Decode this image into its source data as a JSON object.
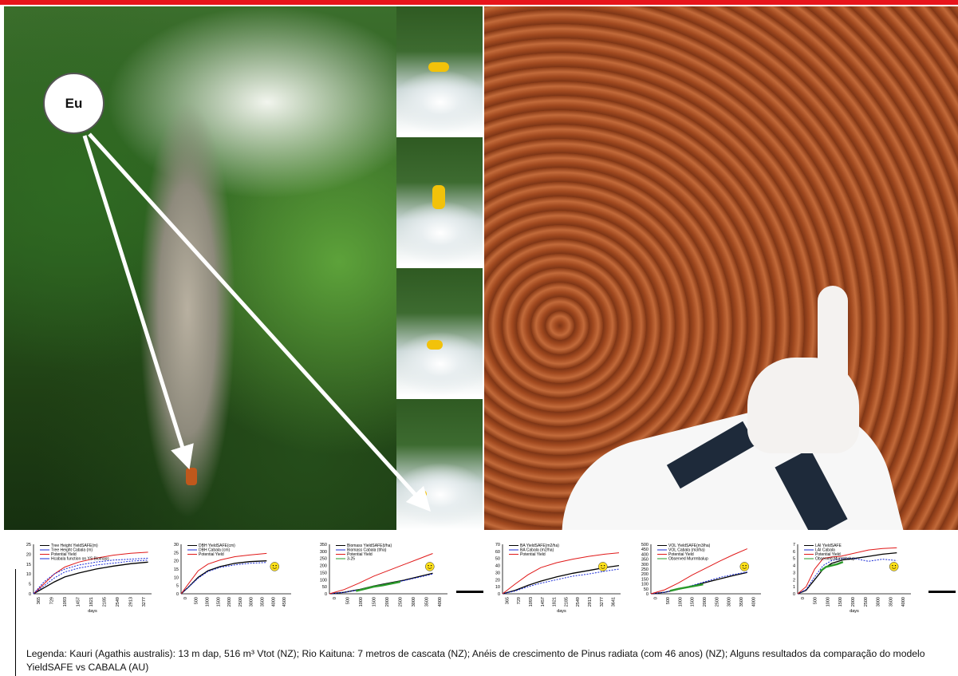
{
  "bubble": {
    "label": "Eu"
  },
  "charts": [
    {
      "name": "tree-height",
      "type": "line",
      "legend": [
        "Tree Height YieldSAFE(m)",
        "Tree Height Cabala (m)",
        "Potential Yield",
        "Hcabala function on YS Biomass"
      ],
      "colors": [
        "#000000",
        "#1a2bd6",
        "#e01818",
        "#1a2bd6"
      ],
      "yticks": [
        "25",
        "20",
        "15",
        "10",
        "5",
        "0"
      ],
      "xticks": [
        "365",
        "729",
        "1093",
        "1457",
        "1821",
        "2185",
        "2549",
        "2913",
        "3277"
      ],
      "xlabel": "days",
      "ylim": [
        0,
        25
      ],
      "xlim": [
        0,
        3400
      ],
      "series": [
        {
          "x": [
            0,
            300,
            600,
            900,
            1300,
            1800,
            2300,
            2800,
            3300
          ],
          "y": [
            0,
            3,
            6,
            8.5,
            10.5,
            12.5,
            14,
            15.2,
            16
          ]
        },
        {
          "x": [
            0,
            300,
            600,
            900,
            1300,
            1800,
            2300,
            2800,
            3300
          ],
          "y": [
            0,
            4,
            8,
            11,
            13,
            14.5,
            15.5,
            16.5,
            17
          ]
        },
        {
          "x": [
            0,
            300,
            600,
            900,
            1300,
            1800,
            2300,
            2800,
            3300
          ],
          "y": [
            0,
            5,
            10,
            13.5,
            16,
            18,
            19.5,
            20.5,
            21
          ]
        },
        {
          "x": [
            0,
            300,
            600,
            900,
            1300,
            1800,
            2300,
            2800,
            3300
          ],
          "y": [
            0,
            6,
            10,
            12.5,
            14.5,
            16,
            17,
            17.5,
            18
          ]
        }
      ]
    },
    {
      "name": "dbh",
      "type": "line",
      "legend": [
        "DBH YieldSAFE(cm)",
        "DBH Cabala (cm)",
        "Potential Yield"
      ],
      "colors": [
        "#000000",
        "#1a2bd6",
        "#e01818"
      ],
      "yticks": [
        "30",
        "25",
        "20",
        "15",
        "10",
        "5",
        "0"
      ],
      "xticks": [
        "0",
        "500",
        "1000",
        "1500",
        "2000",
        "2500",
        "3000",
        "3500",
        "4000",
        "4500"
      ],
      "xlabel": "",
      "ylim": [
        0,
        30
      ],
      "xlim": [
        0,
        4500
      ],
      "smiley": true,
      "series": [
        {
          "x": [
            0,
            300,
            700,
            1100,
            1600,
            2200,
            2800,
            3500
          ],
          "y": [
            0,
            4,
            10,
            14,
            16.5,
            18.5,
            19.5,
            20
          ]
        },
        {
          "x": [
            0,
            300,
            700,
            1100,
            1600,
            2200,
            2800,
            3500
          ],
          "y": [
            0,
            4,
            9.5,
            13.5,
            16,
            17.5,
            18.5,
            19
          ]
        },
        {
          "x": [
            0,
            300,
            700,
            1100,
            1600,
            2200,
            2800,
            3500
          ],
          "y": [
            0,
            6,
            14,
            18,
            20.5,
            22.5,
            23.5,
            24.5
          ]
        }
      ]
    },
    {
      "name": "biomass",
      "type": "line",
      "legend": [
        "Biomass YieldSAFE(t/ha)",
        "Biomass Cabala (t/ha)",
        "Potential Yield",
        "3-25"
      ],
      "colors": [
        "#000000",
        "#1a2bd6",
        "#e01818",
        "#2a9a2a"
      ],
      "yticks": [
        "350",
        "300",
        "250",
        "200",
        "150",
        "100",
        "50",
        "0"
      ],
      "xticks": [
        "0",
        "500",
        "1000",
        "1500",
        "2000",
        "2500",
        "3000",
        "3500",
        "4000"
      ],
      "xlabel": "",
      "ylim": [
        0,
        350
      ],
      "xlim": [
        0,
        4000
      ],
      "smiley": true,
      "series": [
        {
          "x": [
            0,
            500,
            1000,
            1500,
            2000,
            2500,
            3000,
            3500
          ],
          "y": [
            0,
            10,
            30,
            55,
            75,
            95,
            120,
            145
          ]
        },
        {
          "x": [
            0,
            500,
            1000,
            1500,
            2000,
            2500,
            3000,
            3500
          ],
          "y": [
            0,
            10,
            28,
            52,
            72,
            92,
            115,
            140
          ]
        },
        {
          "x": [
            0,
            500,
            1000,
            1500,
            2000,
            2500,
            3000,
            3500
          ],
          "y": [
            0,
            30,
            75,
            125,
            165,
            205,
            245,
            285
          ]
        },
        {
          "x": [
            900,
            1200,
            1500,
            1800,
            2100,
            2400
          ],
          "y": [
            20,
            35,
            50,
            60,
            72,
            85
          ]
        }
      ]
    },
    {
      "name": "basal-area",
      "type": "line",
      "legend": [
        "BA YieldSAFE(m2/ha)",
        "BA Cabala (m2/ha)",
        "Potential Yield"
      ],
      "colors": [
        "#000000",
        "#1a2bd6",
        "#e01818"
      ],
      "yticks": [
        "70",
        "60",
        "50",
        "40",
        "30",
        "20",
        "10",
        "0"
      ],
      "xticks": [
        "365",
        "729",
        "1093",
        "1457",
        "1821",
        "2185",
        "2549",
        "2913",
        "3277",
        "3641"
      ],
      "xlabel": "days",
      "ylim": [
        0,
        70
      ],
      "xlim": [
        0,
        3700
      ],
      "smiley": true,
      "series": [
        {
          "x": [
            0,
            400,
            800,
            1200,
            1700,
            2200,
            2700,
            3200,
            3650
          ],
          "y": [
            0,
            5,
            12,
            18,
            24,
            29,
            33,
            37,
            40
          ]
        },
        {
          "x": [
            0,
            400,
            800,
            1200,
            1700,
            2200,
            2700,
            3200,
            3650
          ],
          "y": [
            0,
            4,
            10,
            15,
            20,
            25,
            28,
            32,
            35
          ]
        },
        {
          "x": [
            0,
            400,
            800,
            1200,
            1700,
            2200,
            2700,
            3200,
            3650
          ],
          "y": [
            0,
            14,
            27,
            37,
            44,
            49,
            53,
            56,
            58
          ]
        }
      ]
    },
    {
      "name": "volume",
      "type": "line",
      "legend": [
        "VOL YieldSAFE(m3/ha)",
        "VOL Cabala (m3/ha)",
        "Potential Yield",
        "Observed Murrmbalup"
      ],
      "colors": [
        "#000000",
        "#1a2bd6",
        "#e01818",
        "#2a9a2a"
      ],
      "yticks": [
        "500",
        "450",
        "400",
        "350",
        "300",
        "250",
        "200",
        "150",
        "100",
        "50",
        "0"
      ],
      "xticks": [
        "0",
        "500",
        "1000",
        "1500",
        "2000",
        "2500",
        "3000",
        "3500",
        "4000"
      ],
      "xlabel": "",
      "ylim": [
        0,
        500
      ],
      "xlim": [
        0,
        4000
      ],
      "smiley": true,
      "series": [
        {
          "x": [
            0,
            500,
            1000,
            1500,
            2000,
            2500,
            3000,
            3500
          ],
          "y": [
            0,
            15,
            45,
            80,
            115,
            150,
            185,
            215
          ]
        },
        {
          "x": [
            0,
            500,
            1000,
            1500,
            2000,
            2500,
            3000,
            3500
          ],
          "y": [
            0,
            15,
            45,
            85,
            125,
            165,
            195,
            220
          ]
        },
        {
          "x": [
            0,
            500,
            1000,
            1500,
            2000,
            2500,
            3000,
            3500
          ],
          "y": [
            0,
            40,
            110,
            190,
            260,
            330,
            395,
            455
          ]
        },
        {
          "x": [
            700,
            1000,
            1300,
            1600,
            1900
          ],
          "y": [
            30,
            50,
            65,
            80,
            95
          ]
        }
      ]
    },
    {
      "name": "lai",
      "type": "line",
      "legend": [
        "LAI YieldSAFE",
        "LAI Cabala",
        "Potential Yield",
        "Observed Murrmbalup"
      ],
      "colors": [
        "#000000",
        "#1a2bd6",
        "#e01818",
        "#2a9a2a"
      ],
      "yticks": [
        "7",
        "6",
        "5",
        "4",
        "3",
        "2",
        "1",
        "0"
      ],
      "xticks": [
        "0",
        "500",
        "1000",
        "1500",
        "2000",
        "2500",
        "3000",
        "3500",
        "4000"
      ],
      "xlabel": "days",
      "ylim": [
        0,
        7
      ],
      "xlim": [
        0,
        4000
      ],
      "smiley": true,
      "series": [
        {
          "x": [
            0,
            300,
            600,
            900,
            1200,
            1600,
            2000,
            2500,
            3000,
            3500
          ],
          "y": [
            0,
            0.5,
            2,
            3.5,
            4.3,
            4.8,
            5,
            5.3,
            5.6,
            5.8
          ]
        },
        {
          "x": [
            0,
            300,
            600,
            900,
            1200,
            1600,
            2000,
            2500,
            3000,
            3500
          ],
          "y": [
            0,
            0.6,
            2.4,
            4,
            4.7,
            5,
            5,
            4.6,
            4.9,
            4.7
          ]
        },
        {
          "x": [
            0,
            300,
            600,
            900,
            1200,
            1500,
            2500,
            3000,
            3500
          ],
          "y": [
            0,
            1,
            3.5,
            5,
            5.2,
            5.3,
            6.2,
            6.4,
            6.5
          ]
        },
        {
          "x": [
            800,
            1000,
            1200,
            1400,
            1600
          ],
          "y": [
            3.2,
            3.8,
            4,
            4.2,
            4.5
          ]
        }
      ]
    }
  ],
  "caption": {
    "text": "Legenda: Kauri  (Agathis australis): 13 m dap, 516 m³ Vtot (NZ); Rio Kaituna: 7 metros de cascata (NZ); Anéis de crescimento de Pinus radiata (com 46 anos) (NZ); Alguns resultados da comparação do modelo YieldSAFE vs CABALA (AU)"
  }
}
